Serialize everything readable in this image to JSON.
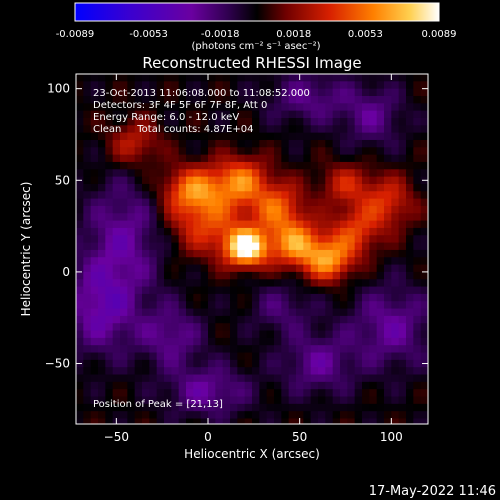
{
  "chart_data": {
    "type": "heatmap",
    "title": "Reconstructed RHESSI Image",
    "xlabel": "Heliocentric X (arcsec)",
    "ylabel": "Heliocentric Y (arcsec)",
    "xlim": [
      -72,
      120
    ],
    "ylim": [
      -83,
      108
    ],
    "x_ticks": [
      -50,
      0,
      50,
      100
    ],
    "y_ticks": [
      -50,
      0,
      50,
      100
    ],
    "colorbar": {
      "ticks": [
        -0.0089,
        -0.0053,
        -0.0018,
        0.0018,
        0.0053,
        0.0089
      ],
      "tick_labels": [
        "-0.0089",
        "-0.0053",
        "-0.0018",
        "0.0018",
        "0.0053",
        "0.0089"
      ],
      "colormap": [
        "#0000ff",
        "#4a00cc",
        "#7000a0",
        "#000000",
        "#800000",
        "#dd2a00",
        "#ff8a00",
        "#ffe070",
        "#ffffff"
      ]
    },
    "colorbar_unit": "(photons cm⁻² s⁻¹ asec⁻²)",
    "annotations": [
      "23-Oct-2013 11:06:08.000 to 11:08:52.000",
      "Detectors: 3F 4F 5F 6F 7F 8F, Att 0",
      "Energy Range: 6.0 - 12.0 keV",
      "Clean     Total counts: 4.87E+04"
    ],
    "peak_label": "Position of Peak = [21,13]",
    "peak": {
      "x": 21,
      "y": 13
    },
    "sources": [
      {
        "x": 21,
        "y": 13,
        "amp": 0.0089,
        "sx": 8,
        "sy": 7
      },
      {
        "x": 48,
        "y": 15,
        "amp": 0.0058,
        "sx": 10,
        "sy": 9
      },
      {
        "x": 66,
        "y": 6,
        "amp": 0.0055,
        "sx": 9,
        "sy": 8
      },
      {
        "x": -8,
        "y": 45,
        "amp": 0.0052,
        "sx": 12,
        "sy": 9
      },
      {
        "x": 18,
        "y": 50,
        "amp": 0.005,
        "sx": 10,
        "sy": 9
      },
      {
        "x": 0,
        "y": 26,
        "amp": 0.004,
        "sx": 16,
        "sy": 12
      },
      {
        "x": 38,
        "y": 35,
        "amp": 0.0045,
        "sx": 10,
        "sy": 10
      },
      {
        "x": 80,
        "y": 22,
        "amp": 0.0038,
        "sx": 10,
        "sy": 10
      },
      {
        "x": 98,
        "y": 38,
        "amp": 0.0035,
        "sx": 10,
        "sy": 10
      },
      {
        "x": -40,
        "y": 70,
        "amp": 0.003,
        "sx": 10,
        "sy": 9
      },
      {
        "x": 75,
        "y": 48,
        "amp": 0.003,
        "sx": 10,
        "sy": 8
      },
      {
        "x": -45,
        "y": 20,
        "amp": -0.003,
        "sx": 16,
        "sy": 22
      },
      {
        "x": -58,
        "y": -20,
        "amp": -0.0035,
        "sx": 14,
        "sy": 18
      },
      {
        "x": 100,
        "y": -30,
        "amp": -0.003,
        "sx": 16,
        "sy": 16
      },
      {
        "x": 0,
        "y": -65,
        "amp": -0.003,
        "sx": 16,
        "sy": 10
      },
      {
        "x": 55,
        "y": 95,
        "amp": -0.0025,
        "sx": 16,
        "sy": 10
      },
      {
        "x": 90,
        "y": 85,
        "amp": -0.0025,
        "sx": 12,
        "sy": 12
      },
      {
        "x": -20,
        "y": -35,
        "amp": -0.0028,
        "sx": 12,
        "sy": 12
      },
      {
        "x": 60,
        "y": -50,
        "amp": -0.0028,
        "sx": 14,
        "sy": 12
      },
      {
        "x": 40,
        "y": -20,
        "amp": -0.002,
        "sx": 12,
        "sy": 10
      }
    ]
  },
  "footer": {
    "timestamp": "17-May-2022 11:46"
  }
}
